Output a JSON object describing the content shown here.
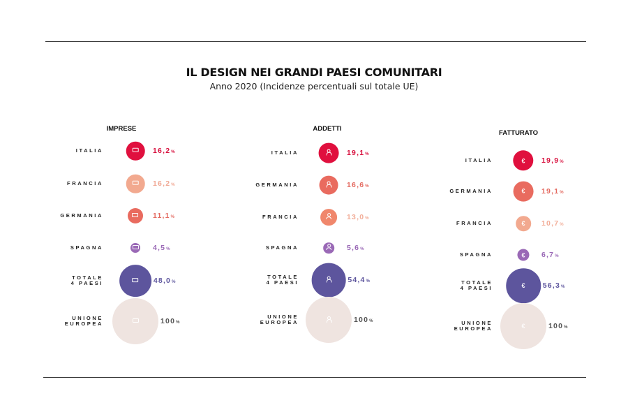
{
  "title": "IL DESIGN NEI GRANDI PAESI COMUNITARI",
  "subtitle": "Anno 2020 (Incidenze percentuali sul totale UE)",
  "chart_data": [
    {
      "type": "bubble",
      "title": "IMPRESE",
      "icon": "factory-icon",
      "categories": [
        "ITALIA",
        "FRANCIA",
        "GERMANIA",
        "SPAGNA",
        "TOTALE 4 PAESI",
        "UNIONE EUROPEA"
      ],
      "values": [
        16.2,
        16.2,
        11.1,
        4.5,
        48.0,
        100
      ],
      "labels": [
        "16,2",
        "16,2",
        "11,1",
        "4,5",
        "48,0",
        "100"
      ],
      "unit": "%",
      "colors": [
        "#e0103e",
        "#f2a98f",
        "#e96b5f",
        "#9a69b6",
        "#5d559d",
        "#efe4e0"
      ],
      "value_colors": [
        "#d8123f",
        "#f0a894",
        "#e46a60",
        "#9a69b6",
        "#5d559d",
        "#555555"
      ]
    },
    {
      "type": "bubble",
      "title": "ADDETTI",
      "icon": "person-icon",
      "categories": [
        "ITALIA",
        "GERMANIA",
        "FRANCIA",
        "SPAGNA",
        "TOTALE 4 PAESI",
        "UNIONE EUROPEA"
      ],
      "values": [
        19.1,
        16.6,
        13.0,
        5.6,
        54.4,
        100
      ],
      "labels": [
        "19,1",
        "16,6",
        "13,0",
        "5,6",
        "54,4",
        "100"
      ],
      "unit": "%",
      "colors": [
        "#e0103e",
        "#e96b5f",
        "#f0876c",
        "#9a69b6",
        "#5d559d",
        "#efe4e0"
      ],
      "value_colors": [
        "#d8123f",
        "#e46a60",
        "#f2ad98",
        "#9a69b6",
        "#5d559d",
        "#555555"
      ]
    },
    {
      "type": "bubble",
      "title": "FATTURATO",
      "icon": "euro-icon",
      "categories": [
        "ITALIA",
        "GERMANIA",
        "FRANCIA",
        "SPAGNA",
        "TOTALE 4 PAESI",
        "UNIONE EUROPEA"
      ],
      "values": [
        19.9,
        19.1,
        10.7,
        6.7,
        56.3,
        100
      ],
      "labels": [
        "19,9",
        "19,1",
        "10,7",
        "6,7",
        "56,3",
        "100"
      ],
      "unit": "%",
      "colors": [
        "#e0103e",
        "#e96b5f",
        "#f2a98f",
        "#9a69b6",
        "#5d559d",
        "#efe4e0"
      ],
      "value_colors": [
        "#d8123f",
        "#e46a60",
        "#f2ad98",
        "#9a69b6",
        "#5d559d",
        "#555555"
      ]
    }
  ]
}
